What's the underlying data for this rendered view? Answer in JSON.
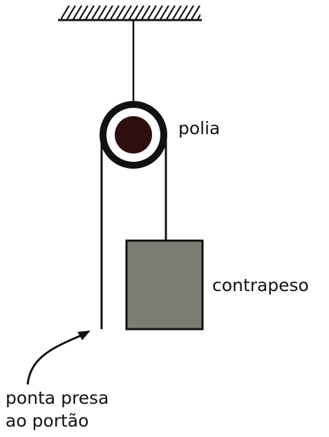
{
  "labels": {
    "pulley": "polia",
    "counterweight": "contrapeso",
    "rope_end_line1": "ponta presa",
    "rope_end_line2": "ao portão"
  },
  "colors": {
    "line": "#111111",
    "pulley_hub": "#2e0e0e",
    "counterweight_fill": "#7c7c74",
    "background": "#ffffff"
  }
}
